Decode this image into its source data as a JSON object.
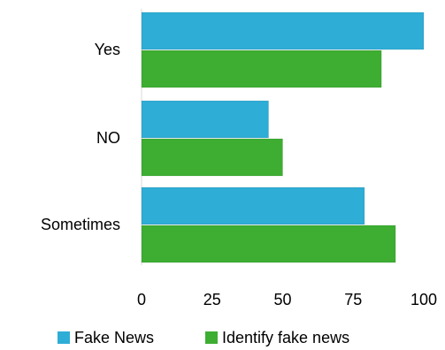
{
  "chart_data": {
    "type": "bar",
    "orientation": "horizontal",
    "categories": [
      "Yes",
      "NO",
      "Sometimes"
    ],
    "series": [
      {
        "name": "Fake News",
        "color": "#2EADD6",
        "values": [
          100,
          45,
          79
        ]
      },
      {
        "name": "Identify fake news",
        "color": "#3DAE32",
        "values": [
          85,
          50,
          90
        ]
      }
    ],
    "xlim": [
      0,
      100
    ],
    "xticks": [
      "0",
      "25",
      "50",
      "75",
      "100"
    ],
    "title": "",
    "xlabel": "",
    "ylabel": "",
    "grid": false,
    "legend_position": "bottom"
  }
}
